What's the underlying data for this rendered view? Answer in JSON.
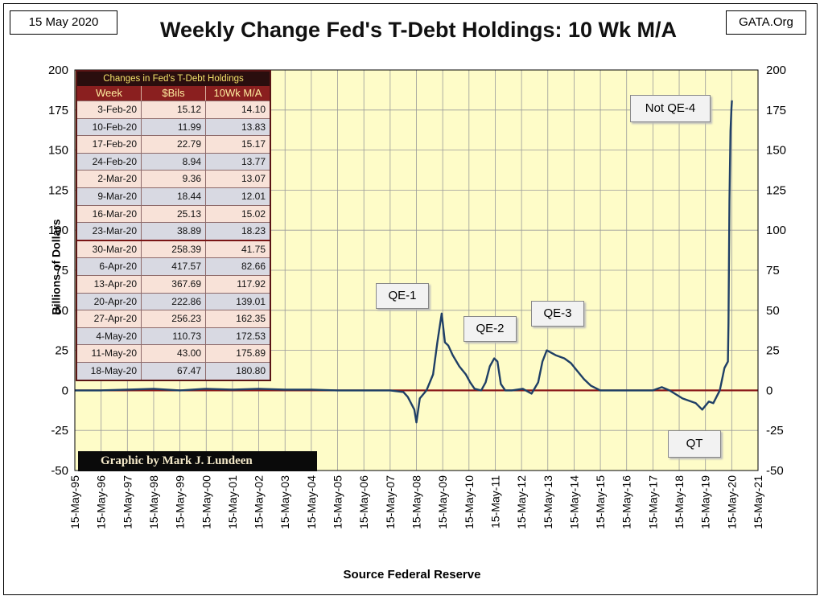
{
  "header": {
    "date": "15 May 2020",
    "site": "GATA.Org",
    "title": "Weekly Change Fed's T-Debt Holdings: 10 Wk M/A"
  },
  "axes": {
    "ylabel": "Billions  of  Dollars",
    "xlabel": "Source Federal Reserve"
  },
  "credit": "Graphic by Mark J. Lundeen",
  "table": {
    "caption": "Changes in Fed's T-Debt Holdings",
    "headers": [
      "Week",
      "$Bils",
      "10Wk M/A"
    ],
    "rows": [
      [
        "3-Feb-20",
        "15.12",
        "14.10"
      ],
      [
        "10-Feb-20",
        "11.99",
        "13.83"
      ],
      [
        "17-Feb-20",
        "22.79",
        "15.17"
      ],
      [
        "24-Feb-20",
        "8.94",
        "13.77"
      ],
      [
        "2-Mar-20",
        "9.36",
        "13.07"
      ],
      [
        "9-Mar-20",
        "18.44",
        "12.01"
      ],
      [
        "16-Mar-20",
        "25.13",
        "15.02"
      ],
      [
        "23-Mar-20",
        "38.89",
        "18.23"
      ],
      [
        "30-Mar-20",
        "258.39",
        "41.75"
      ],
      [
        "6-Apr-20",
        "417.57",
        "82.66"
      ],
      [
        "13-Apr-20",
        "367.69",
        "117.92"
      ],
      [
        "20-Apr-20",
        "222.86",
        "139.01"
      ],
      [
        "27-Apr-20",
        "256.23",
        "162.35"
      ],
      [
        "4-May-20",
        "110.73",
        "172.53"
      ],
      [
        "11-May-20",
        "43.00",
        "175.89"
      ],
      [
        "18-May-20",
        "67.47",
        "180.80"
      ]
    ]
  },
  "annotations": {
    "qe1": "QE-1",
    "qe2": "QE-2",
    "qe3": "QE-3",
    "qe4": "Not QE-4",
    "qt": "QT"
  },
  "colors": {
    "plot_bg": "#fefcc8",
    "line": "#1f3f66",
    "zero_line": "#8b1a1a",
    "grid": "#9a9a9a"
  },
  "chart_data": {
    "type": "line",
    "title": "Weekly Change Fed's T-Debt Holdings: 10 Wk M/A",
    "ylabel": "Billions  of  Dollars",
    "xlabel": "Source Federal Reserve",
    "ylim": [
      -50,
      200
    ],
    "yticks": [
      -50,
      -25,
      0,
      25,
      50,
      75,
      100,
      125,
      150,
      175,
      200
    ],
    "xlim": [
      "1995-05-15",
      "2021-05-15"
    ],
    "xticks": [
      "15-May-95",
      "15-May-96",
      "15-May-97",
      "15-May-98",
      "15-May-99",
      "15-May-00",
      "15-May-01",
      "15-May-02",
      "15-May-03",
      "15-May-04",
      "15-May-05",
      "15-May-06",
      "15-May-07",
      "15-May-08",
      "15-May-09",
      "15-May-10",
      "15-May-11",
      "15-May-12",
      "15-May-13",
      "15-May-14",
      "15-May-15",
      "15-May-16",
      "15-May-17",
      "15-May-18",
      "15-May-19",
      "15-May-20",
      "15-May-21"
    ],
    "grid": true,
    "series": [
      {
        "x": [
          "1995-05-15",
          "1996-05-15",
          "1997-05-15",
          "1998-05-15",
          "1999-05-15",
          "2000-05-15",
          "2001-05-15",
          "2002-05-15",
          "2003-05-15",
          "2004-05-15",
          "2005-05-15",
          "2006-05-15",
          "2007-05-15",
          "2007-11-15",
          "2008-01-15",
          "2008-03-01",
          "2008-04-15",
          "2008-05-15",
          "2008-07-01",
          "2008-10-01",
          "2009-01-01",
          "2009-03-01",
          "2009-05-01",
          "2009-06-15",
          "2009-08-01",
          "2009-10-01",
          "2010-01-01",
          "2010-04-01",
          "2010-06-01",
          "2010-08-01",
          "2010-11-01",
          "2011-01-01",
          "2011-03-01",
          "2011-05-01",
          "2011-06-15",
          "2011-08-01",
          "2011-10-01",
          "2012-01-01",
          "2012-06-01",
          "2012-10-01",
          "2013-01-01",
          "2013-03-01",
          "2013-05-01",
          "2013-09-01",
          "2014-01-01",
          "2014-04-01",
          "2014-07-01",
          "2014-10-01",
          "2015-01-01",
          "2015-05-15",
          "2016-05-15",
          "2017-05-15",
          "2017-09-15",
          "2018-01-01",
          "2018-07-01",
          "2019-01-01",
          "2019-04-01",
          "2019-07-01",
          "2019-09-01",
          "2019-12-01",
          "2020-02-03",
          "2020-03-23",
          "2020-03-30",
          "2020-04-13",
          "2020-04-27",
          "2020-05-11",
          "2020-05-18"
        ],
        "values": [
          0,
          0,
          0.5,
          1,
          0,
          1,
          0.5,
          1,
          0.5,
          0.5,
          0,
          0,
          0,
          -1,
          -4,
          -8,
          -12,
          -20,
          -5,
          0,
          10,
          30,
          48,
          30,
          28,
          22,
          15,
          10,
          5,
          1,
          0,
          5,
          15,
          20,
          18,
          4,
          0,
          0,
          1,
          -2,
          5,
          18,
          25,
          22,
          20,
          17,
          12,
          7,
          3,
          0,
          0,
          0,
          2,
          0,
          -5,
          -8,
          -12,
          -7,
          -8,
          0,
          14,
          18,
          42,
          118,
          162,
          176,
          181
        ]
      }
    ]
  }
}
